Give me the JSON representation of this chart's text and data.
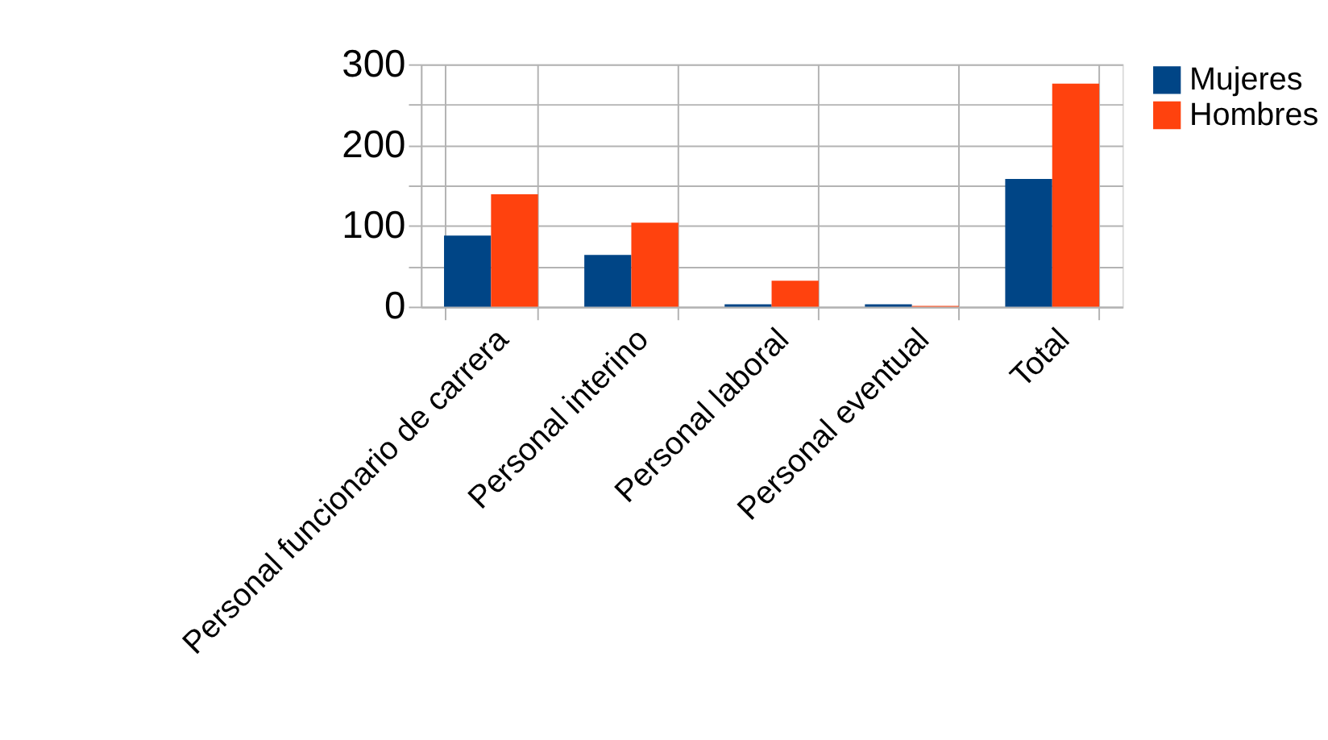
{
  "chart_data": {
    "type": "bar",
    "categories": [
      "Personal funcionario de carrera",
      "Personal interino",
      "Personal laboral",
      "Personal eventual",
      "Total"
    ],
    "series": [
      {
        "name": "Mujeres",
        "color": "#004586",
        "values": [
          88,
          64,
          3,
          3,
          158
        ]
      },
      {
        "name": "Hombres",
        "color": "#ff420e",
        "values": [
          139,
          104,
          32,
          1,
          276
        ]
      }
    ],
    "ylim": [
      0,
      300
    ],
    "yticks": [
      0,
      {
        "value": 50,
        "label": null
      },
      100,
      {
        "value": 150,
        "label": null
      },
      200,
      {
        "value": 250,
        "label": null
      },
      300
    ],
    "grid": true,
    "legend": "right"
  }
}
